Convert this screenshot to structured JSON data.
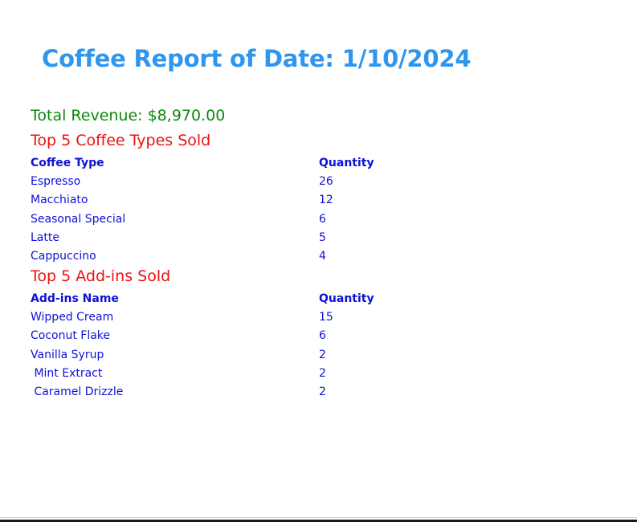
{
  "report": {
    "title": "Coffee Report of Date: 1/10/2024",
    "total_revenue": "Total Revenue: $8,970.00"
  },
  "coffee_types": {
    "section_title": "Top 5 Coffee Types Sold",
    "headers": [
      "Coffee Type",
      "Quantity"
    ],
    "rows": [
      {
        "name": "Espresso",
        "quantity": "26"
      },
      {
        "name": "Macchiato",
        "quantity": "12"
      },
      {
        "name": "Seasonal Special",
        "quantity": "6"
      },
      {
        "name": "Latte",
        "quantity": "5"
      },
      {
        "name": "Cappuccino",
        "quantity": "4"
      }
    ]
  },
  "addins": {
    "section_title": "Top 5 Add-ins Sold",
    "headers": [
      "Add-ins Name",
      "Quantity"
    ],
    "rows": [
      {
        "name": "Wipped Cream",
        "quantity": "15"
      },
      {
        "name": "Coconut Flake",
        "quantity": "6"
      },
      {
        "name": "Vanilla Syrup",
        "quantity": "2"
      },
      {
        "name": " Mint Extract",
        "quantity": "2"
      },
      {
        "name": " Caramel Drizzle",
        "quantity": "2"
      }
    ]
  },
  "colors": {
    "title": "#2f96ee",
    "revenue": "#0c8a0c",
    "section_heading": "#ee1111",
    "table_text": "#1010d8"
  }
}
